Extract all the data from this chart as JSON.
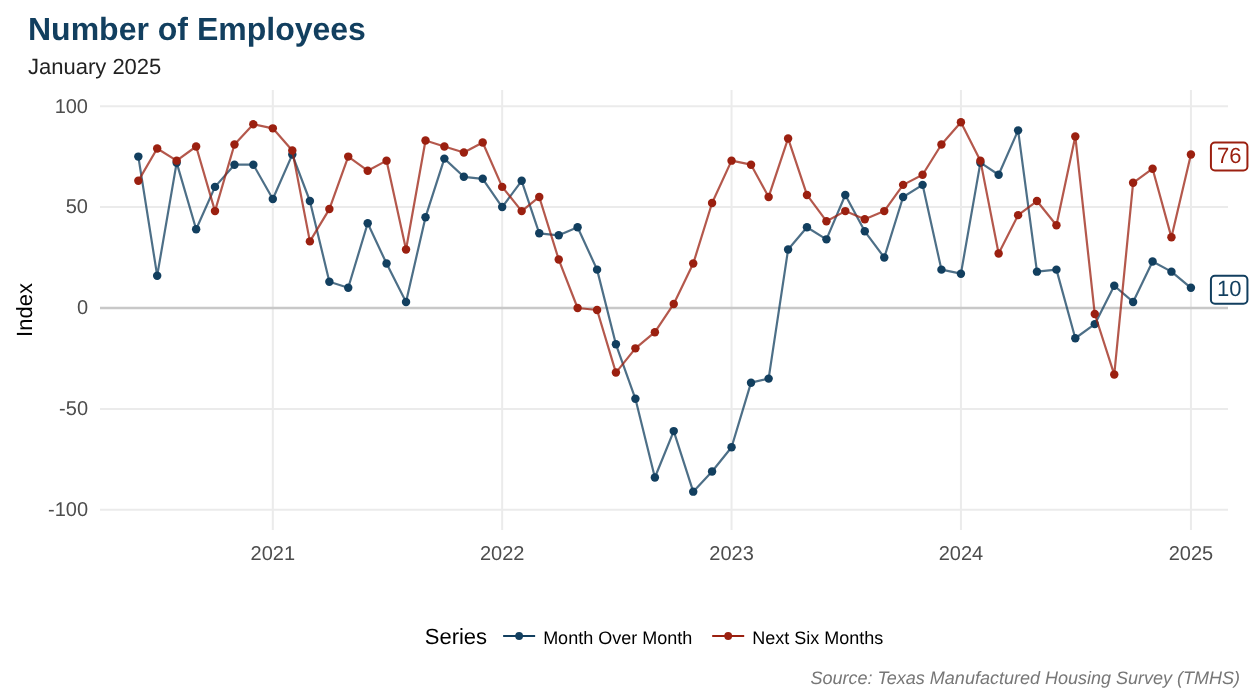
{
  "chart_data": {
    "type": "line",
    "title": "Number of Employees",
    "subtitle": "January 2025",
    "ylabel": "Index",
    "legend_title": "Series",
    "x": [
      "2020-06",
      "2020-07",
      "2020-08",
      "2020-09",
      "2020-10",
      "2020-11",
      "2020-12",
      "2021-01",
      "2021-02",
      "2021-03",
      "2021-04",
      "2021-05",
      "2021-06",
      "2021-07",
      "2021-08",
      "2021-09",
      "2021-10",
      "2021-11",
      "2021-12",
      "2022-01",
      "2022-02",
      "2022-03",
      "2022-04",
      "2022-05",
      "2022-06",
      "2022-07",
      "2022-08",
      "2022-09",
      "2022-10",
      "2022-11",
      "2022-12",
      "2023-01",
      "2023-02",
      "2023-03",
      "2023-04",
      "2023-05",
      "2023-06",
      "2023-07",
      "2023-08",
      "2023-09",
      "2023-10",
      "2023-11",
      "2023-12",
      "2024-01",
      "2024-02",
      "2024-03",
      "2024-04",
      "2024-05",
      "2024-06",
      "2024-07",
      "2024-08",
      "2024-09",
      "2024-10",
      "2024-11",
      "2024-12",
      "2025-01"
    ],
    "series": [
      {
        "name": "Month Over Month",
        "color": "#123f5f",
        "values": [
          75,
          16,
          72,
          39,
          60,
          71,
          71,
          54,
          76,
          53,
          13,
          10,
          42,
          22,
          3,
          45,
          74,
          65,
          64,
          50,
          63,
          37,
          36,
          40,
          19,
          -18,
          -45,
          -84,
          -61,
          -91,
          -81,
          -69,
          -37,
          -35,
          29,
          40,
          34,
          56,
          38,
          25,
          55,
          61,
          19,
          17,
          72,
          66,
          88,
          18,
          19,
          -15,
          -8,
          11,
          3,
          23,
          18,
          10
        ],
        "value_labels": [
          null,
          null,
          null,
          null,
          null,
          null,
          null,
          null,
          null,
          null,
          null,
          null,
          null,
          null,
          null,
          null,
          null,
          null,
          null,
          null,
          null,
          null,
          null,
          null,
          null,
          null,
          null,
          null,
          null,
          null,
          null,
          null,
          null,
          null,
          null,
          null,
          null,
          null,
          null,
          null,
          null,
          null,
          null,
          null,
          null,
          null,
          null,
          null,
          null,
          null,
          null,
          null,
          null,
          null,
          null,
          "10"
        ]
      },
      {
        "name": "Next Six Months",
        "color": "#9b2010",
        "values": [
          63,
          79,
          73,
          80,
          48,
          81,
          91,
          89,
          78,
          33,
          49,
          75,
          68,
          73,
          29,
          83,
          80,
          77,
          82,
          60,
          48,
          55,
          24,
          0,
          -1,
          -32,
          -20,
          -12,
          2,
          22,
          52,
          73,
          71,
          55,
          84,
          56,
          43,
          48,
          44,
          48,
          61,
          66,
          81,
          92,
          73,
          27,
          46,
          53,
          41,
          85,
          -3,
          -33,
          62,
          69,
          35,
          76
        ],
        "value_labels": [
          null,
          null,
          null,
          null,
          null,
          null,
          null,
          null,
          null,
          null,
          null,
          null,
          null,
          null,
          null,
          null,
          null,
          null,
          null,
          null,
          null,
          null,
          null,
          null,
          null,
          null,
          null,
          null,
          null,
          null,
          null,
          null,
          null,
          null,
          null,
          null,
          null,
          null,
          null,
          null,
          null,
          null,
          null,
          null,
          null,
          null,
          null,
          null,
          null,
          null,
          null,
          null,
          null,
          null,
          null,
          "76"
        ]
      }
    ],
    "xlim": [
      "2020-04",
      "2025-03"
    ],
    "xticks": [
      {
        "value": "2021-01",
        "label": "2021"
      },
      {
        "value": "2022-01",
        "label": "2022"
      },
      {
        "value": "2023-01",
        "label": "2023"
      },
      {
        "value": "2024-01",
        "label": "2024"
      },
      {
        "value": "2025-01",
        "label": "2025"
      }
    ],
    "ylim": [
      -110,
      108
    ],
    "yticks": [
      -100,
      -50,
      0,
      50,
      100
    ],
    "ref_lines": [
      {
        "axis": "y",
        "value": 0,
        "color": "#c8c8c8"
      }
    ],
    "grid": true,
    "legend": "bottom",
    "marker": "circle",
    "line_style": "solid",
    "annotations": [
      "Source: Texas Manufactured Housing Survey (TMHS)"
    ]
  }
}
